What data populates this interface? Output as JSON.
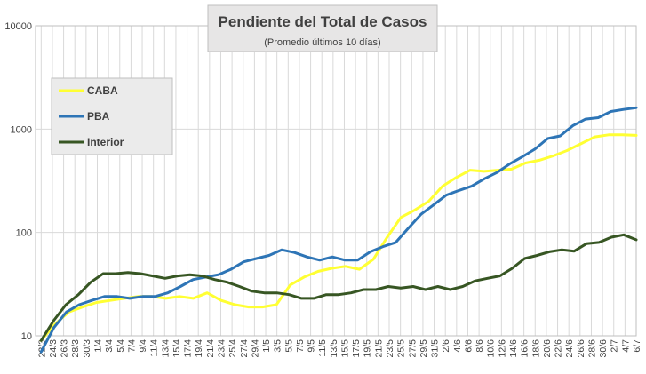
{
  "chart_data": {
    "type": "line",
    "title": "Pendiente del Total de Casos",
    "subtitle": "(Promedio últimos 10 días)",
    "y_scale": "log",
    "ylim": [
      10,
      10000
    ],
    "y_ticks": [
      "10",
      "100",
      "1000",
      "10000"
    ],
    "grid": true,
    "legend_position": "top-left",
    "x_ticks": [
      "22/3",
      "24/3",
      "26/3",
      "28/3",
      "30/3",
      "1/4",
      "3/4",
      "5/4",
      "7/4",
      "9/4",
      "11/4",
      "13/4",
      "15/4",
      "17/4",
      "19/4",
      "21/4",
      "23/4",
      "25/4",
      "27/4",
      "29/4",
      "1/5",
      "3/5",
      "5/5",
      "7/5",
      "9/5",
      "11/5",
      "13/5",
      "15/5",
      "17/5",
      "19/5",
      "21/5",
      "23/5",
      "25/5",
      "27/5",
      "29/5",
      "31/5",
      "2/6",
      "4/6",
      "6/6",
      "8/6",
      "10/6",
      "12/6",
      "14/6",
      "16/6",
      "18/6",
      "20/6",
      "22/6",
      "24/6",
      "26/6",
      "28/6",
      "30/6",
      "2/7",
      "4/7",
      "6/7"
    ],
    "series": [
      {
        "name": "CABA",
        "color": "#FFFF33",
        "values": [
          9,
          13,
          17,
          19,
          21,
          22,
          23,
          24,
          24,
          23,
          24,
          23,
          26,
          22,
          20,
          19,
          19,
          20,
          31,
          37,
          42,
          45,
          47,
          44,
          55,
          90,
          140,
          165,
          200,
          280,
          340,
          400,
          390,
          400,
          410,
          470,
          500,
          550,
          620,
          720,
          840,
          880,
          880,
          870
        ]
      },
      {
        "name": "PBA",
        "color": "#2E75B6",
        "values": [
          7,
          12,
          17,
          20,
          22,
          24,
          24,
          23,
          24,
          24,
          26,
          30,
          35,
          37,
          39,
          44,
          52,
          56,
          60,
          68,
          64,
          58,
          54,
          58,
          54,
          54,
          65,
          73,
          80,
          110,
          150,
          185,
          230,
          255,
          280,
          330,
          380,
          460,
          540,
          640,
          810,
          860,
          1080,
          1250,
          1290,
          1480,
          1550,
          1610
        ]
      },
      {
        "name": "Interior",
        "color": "#375623",
        "values": [
          9,
          14,
          20,
          25,
          33,
          40,
          40,
          41,
          40,
          38,
          36,
          38,
          39,
          38,
          35,
          33,
          30,
          27,
          26,
          26,
          25,
          23,
          23,
          25,
          25,
          26,
          28,
          28,
          30,
          29,
          30,
          28,
          30,
          28,
          30,
          34,
          36,
          38,
          45,
          56,
          60,
          65,
          68,
          66,
          78,
          80,
          90,
          95,
          85
        ]
      }
    ]
  }
}
